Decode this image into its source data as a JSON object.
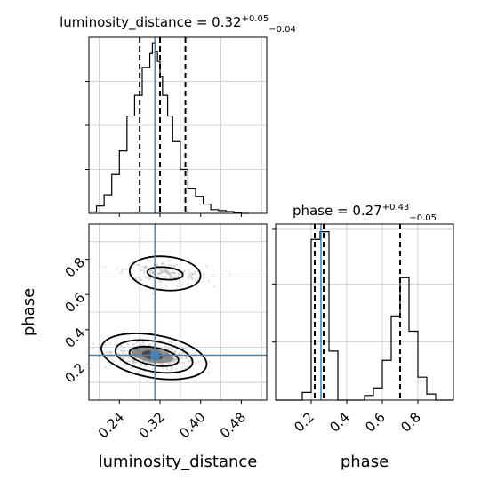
{
  "chart_data": {
    "type": "corner",
    "parameters": [
      "luminosity_distance",
      "phase"
    ],
    "truth": {
      "luminosity_distance": 0.31,
      "phase": 0.255
    },
    "panels": [
      {
        "name": "luminosity_distance-marginal",
        "type": "histogram",
        "title": {
          "main": "luminosity_distance = 0.32",
          "sup": "+0.05",
          "sub": "−0.04"
        },
        "xlim": [
          0.18,
          0.53
        ],
        "quantile_lines": [
          0.28,
          0.32,
          0.37
        ],
        "bin_edges": [
          0.18,
          0.195,
          0.21,
          0.225,
          0.24,
          0.255,
          0.27,
          0.285,
          0.3,
          0.305,
          0.31,
          0.315,
          0.32,
          0.325,
          0.335,
          0.345,
          0.36,
          0.375,
          0.39,
          0.405,
          0.42,
          0.435,
          0.45,
          0.465,
          0.48,
          0.495
        ],
        "counts": [
          0.3,
          1.6,
          4.0,
          8.4,
          13.5,
          21.0,
          25.5,
          31.5,
          34.5,
          36.8,
          35.0,
          32.8,
          29.5,
          25.5,
          21.0,
          15.5,
          9.5,
          5.3,
          3.6,
          2.0,
          0.8,
          0.6,
          0.4,
          0.2,
          0.0
        ],
        "ylim": [
          0,
          38
        ]
      },
      {
        "name": "phase-marginal",
        "type": "histogram",
        "title": {
          "main": "phase = 0.27",
          "sup": "+0.43",
          "sub": "−0.05"
        },
        "xlim": [
          0.0,
          1.0
        ],
        "quantile_lines": [
          0.22,
          0.27,
          0.7
        ],
        "bin_edges": [
          0.0,
          0.05,
          0.1,
          0.15,
          0.2,
          0.25,
          0.3,
          0.35,
          0.4,
          0.45,
          0.5,
          0.55,
          0.6,
          0.65,
          0.7,
          0.75,
          0.8,
          0.85,
          0.9,
          0.95,
          1.0
        ],
        "counts": [
          0,
          0,
          0,
          0.5,
          10.5,
          11.0,
          3.2,
          0,
          0,
          0,
          0.3,
          0.8,
          2.6,
          5.5,
          8.0,
          4.5,
          1.5,
          0.4,
          0,
          0
        ],
        "ylim": [
          0,
          11.5
        ]
      },
      {
        "name": "joint-density",
        "type": "contour",
        "xlabel": "luminosity_distance",
        "ylabel": "phase",
        "xlim": [
          0.18,
          0.53
        ],
        "ylim": [
          0.0,
          1.0
        ],
        "x_ticks": [
          0.24,
          0.32,
          0.4,
          0.48
        ],
        "y_ticks": [
          0.2,
          0.4,
          0.6,
          0.8
        ],
        "clusters": [
          {
            "cx": 0.305,
            "cy": 0.255,
            "sx": 0.045,
            "sy": 0.065,
            "weight": 0.72
          },
          {
            "cx": 0.33,
            "cy": 0.72,
            "sx": 0.045,
            "sy": 0.055,
            "weight": 0.28
          }
        ]
      }
    ],
    "x_tick_labels_lum": [
      "0.24",
      "0.32",
      "0.40",
      "0.48"
    ],
    "y_tick_labels_phase": [
      "0.2",
      "0.4",
      "0.6",
      "0.8"
    ],
    "x_tick_labels_phase": [
      "0.2",
      "0.4",
      "0.6",
      "0.8"
    ]
  }
}
